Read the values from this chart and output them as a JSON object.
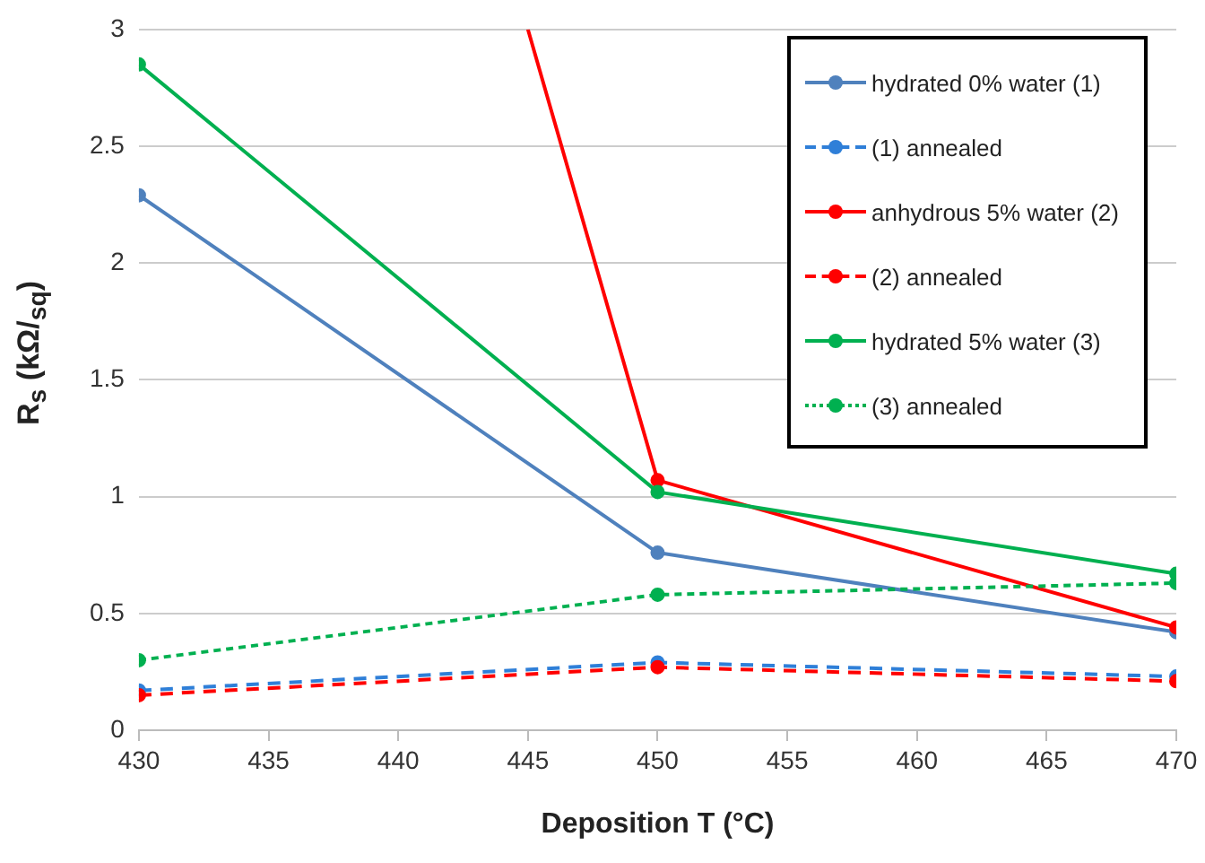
{
  "chart_data": {
    "type": "line",
    "xlabel": "Deposition T (°C)",
    "ylabel": "R$_{s}$ (kΩ/$_{sq}$)",
    "x": [
      430,
      450,
      470
    ],
    "xlim": [
      430,
      470
    ],
    "xticks": [
      430,
      435,
      440,
      445,
      450,
      455,
      460,
      465,
      470
    ],
    "ylim": [
      0,
      3
    ],
    "yticks": [
      0,
      0.5,
      1,
      1.5,
      2,
      2.5,
      3
    ],
    "grid": "y",
    "legend": "top right",
    "marker": "circle",
    "series": [
      {
        "name": "hydrated 0% water (1)",
        "color": "#4f81bd",
        "line_style": "solid",
        "values": [
          2.29,
          0.76,
          0.42
        ]
      },
      {
        "name": "(1) annealed",
        "color": "#2f7fd8",
        "line_style": "dashed",
        "values": [
          0.17,
          0.29,
          0.23
        ]
      },
      {
        "name": "anhydrous 5% water (2)",
        "color": "#ff0000",
        "line_style": "solid",
        "x": [
          445,
          450,
          470
        ],
        "values": [
          3,
          1.07,
          0.44
        ]
      },
      {
        "name": "(2) annealed",
        "color": "#ff0000",
        "line_style": "dashed",
        "values": [
          0.15,
          0.27,
          0.21
        ]
      },
      {
        "name": "hydrated 5% water (3)",
        "color": "#00b050",
        "line_style": "solid",
        "values": [
          2.85,
          1.02,
          0.67
        ]
      },
      {
        "name": "(3) annealed",
        "color": "#00b050",
        "line_style": "dotted",
        "values": [
          0.3,
          0.58,
          0.63
        ]
      }
    ]
  }
}
